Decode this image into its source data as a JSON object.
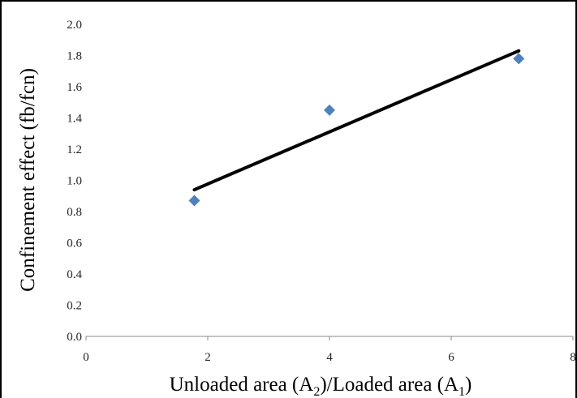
{
  "chart_data": {
    "type": "scatter",
    "xlabel": "Unloaded area (A2)/Loaded area (A1)",
    "xlabel_parts": {
      "p1": "Unloaded area (A",
      "s1": "2",
      "p2": ")/Loaded area (A",
      "s2": "1",
      "p3": ")"
    },
    "ylabel": "Confinement effect (fb/fcn)",
    "xlim": [
      0,
      8
    ],
    "ylim": [
      0.0,
      2.0
    ],
    "x_ticks": [
      "0",
      "2",
      "4",
      "6",
      "8"
    ],
    "y_ticks": [
      "0.0",
      "0.2",
      "0.4",
      "0.6",
      "0.8",
      "1.0",
      "1.2",
      "1.4",
      "1.6",
      "1.8",
      "2.0"
    ],
    "grid": false,
    "legend": "none",
    "series": [
      {
        "marker": "diamond",
        "color": "#4f81bd",
        "points": [
          {
            "x": 1.78,
            "y": 0.87
          },
          {
            "x": 4.0,
            "y": 1.45
          },
          {
            "x": 7.11,
            "y": 1.78
          }
        ]
      }
    ],
    "trendline": {
      "color": "#000000",
      "x": [
        1.78,
        7.11
      ],
      "y": [
        0.94,
        1.83
      ]
    }
  }
}
